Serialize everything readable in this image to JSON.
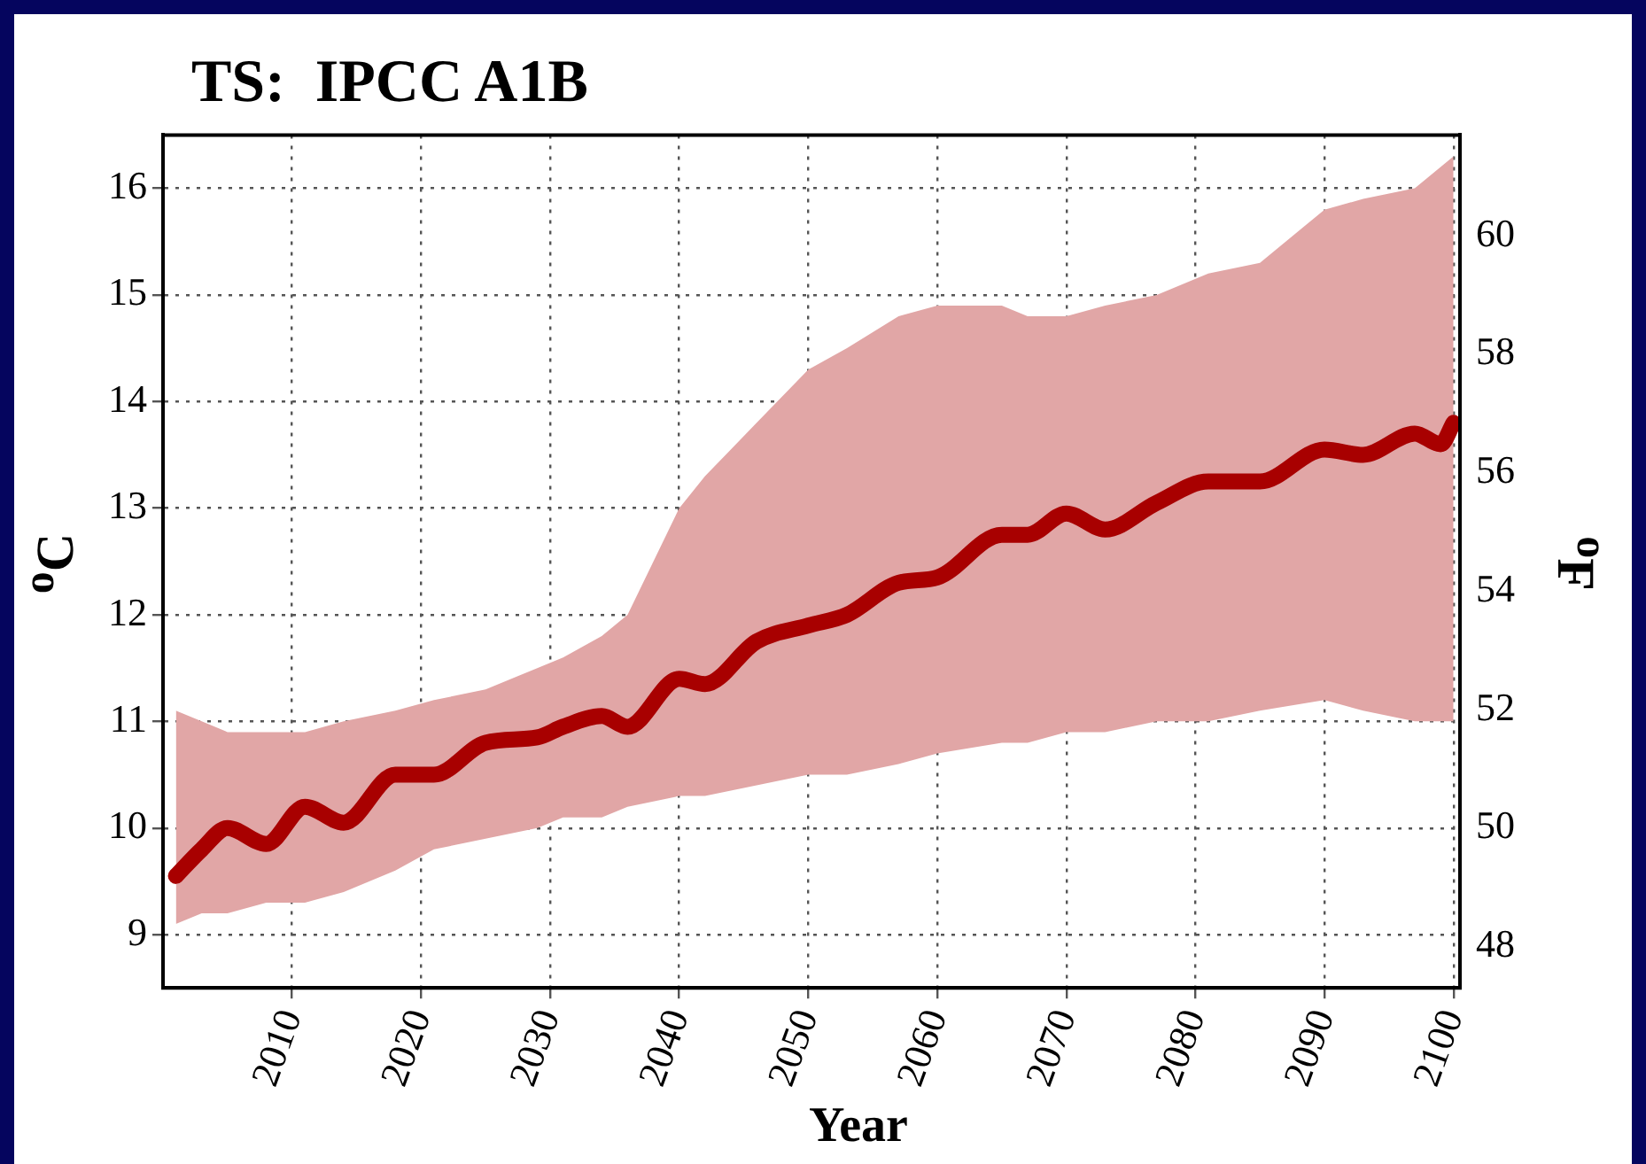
{
  "chart_data": {
    "type": "line",
    "title": "TS:  IPCC A1B",
    "xlabel": "Year",
    "ylabel": "$^{o}$C",
    "y2label": "$^{o}$F",
    "x": [
      2001,
      2003,
      2005,
      2008,
      2011,
      2014,
      2018,
      2021,
      2025,
      2029,
      2031,
      2034,
      2036,
      2040,
      2042,
      2046,
      2050,
      2053,
      2057,
      2060,
      2065,
      2067,
      2070,
      2073,
      2077,
      2081,
      2085,
      2090,
      2093,
      2097,
      2099,
      2100
    ],
    "series": [
      {
        "color": "#a80000",
        "values": [
          9.55,
          9.8,
          10.0,
          9.85,
          10.2,
          10.05,
          10.5,
          10.5,
          10.8,
          10.85,
          10.95,
          11.05,
          10.95,
          11.4,
          11.35,
          11.75,
          11.9,
          12.0,
          12.3,
          12.35,
          12.75,
          12.75,
          12.95,
          12.8,
          13.05,
          13.25,
          13.25,
          13.55,
          13.5,
          13.7,
          13.6,
          13.8
        ],
        "lower": [
          9.1,
          9.2,
          9.2,
          9.3,
          9.3,
          9.4,
          9.6,
          9.8,
          9.9,
          10.0,
          10.1,
          10.1,
          10.2,
          10.3,
          10.3,
          10.4,
          10.5,
          10.5,
          10.6,
          10.7,
          10.8,
          10.8,
          10.9,
          10.9,
          11.0,
          11.0,
          11.1,
          11.2,
          11.1,
          11.0,
          11.0,
          11.0
        ],
        "upper": [
          11.1,
          11.0,
          10.9,
          10.9,
          10.9,
          11.0,
          11.1,
          11.2,
          11.3,
          11.5,
          11.6,
          11.8,
          12.0,
          13.0,
          13.3,
          13.8,
          14.3,
          14.5,
          14.8,
          14.9,
          14.9,
          14.8,
          14.8,
          14.9,
          15.0,
          15.2,
          15.3,
          15.8,
          15.9,
          16.0,
          16.2,
          16.3
        ]
      }
    ],
    "xlim": [
      2000,
      2100.5
    ],
    "xticks": [
      2010,
      2020,
      2030,
      2040,
      2050,
      2060,
      2070,
      2080,
      2090,
      2100
    ],
    "ylim": [
      8.5,
      16.5
    ],
    "yticks": [
      9,
      10,
      11,
      12,
      13,
      14,
      15,
      16
    ],
    "y2lim": [
      47.3,
      61.7
    ],
    "y2ticks": [
      48,
      50,
      52,
      54,
      56,
      58,
      60
    ],
    "grid": true,
    "line_style": "solid",
    "marker": "none",
    "legend": false
  }
}
